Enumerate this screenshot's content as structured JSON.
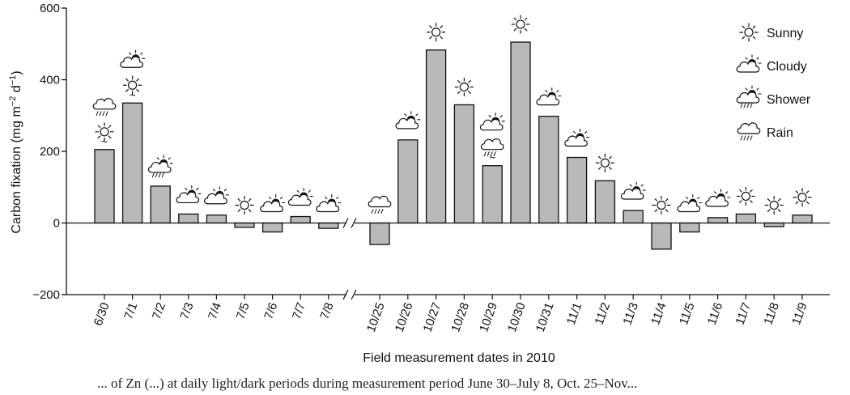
{
  "chart_data": {
    "type": "bar",
    "title": "",
    "xlabel": "Field measurement dates in 2010",
    "ylabel": "Carbon fixation (mg m",
    "ylabel_sup1": "−2",
    "ylabel_mid": " d",
    "ylabel_sup2": "−1",
    "ylabel_end": ")",
    "ylim": [
      -200,
      600
    ],
    "yticks": [
      {
        "value": -200,
        "label": "−200"
      },
      {
        "value": 0,
        "label": "0"
      },
      {
        "value": 200,
        "label": "200"
      },
      {
        "value": 400,
        "label": "400"
      },
      {
        "value": 600,
        "label": "600"
      }
    ],
    "grid": false,
    "bar_color": "#b9b9b9",
    "axis_break_after": "7/8",
    "categories": [
      "6/30",
      "7/1",
      "7/2",
      "7/3",
      "7/4",
      "7/5",
      "7/6",
      "7/7",
      "7/8",
      "10/25",
      "10/26",
      "10/27",
      "10/28",
      "10/29",
      "10/30",
      "10/31",
      "11/1",
      "11/2",
      "11/3",
      "11/4",
      "11/5",
      "11/6",
      "11/7",
      "11/8",
      "11/9"
    ],
    "values": [
      205,
      335,
      103,
      25,
      22,
      -12,
      -25,
      18,
      -15,
      -60,
      232,
      483,
      330,
      160,
      505,
      298,
      183,
      118,
      35,
      -73,
      -25,
      15,
      25,
      -10,
      22
    ],
    "weather": [
      [
        "sunny",
        "rain"
      ],
      [
        "sunny",
        "cloudy"
      ],
      [
        "shower"
      ],
      [
        "cloudy"
      ],
      [
        "cloudy"
      ],
      [
        "sunny"
      ],
      [
        "cloudy"
      ],
      [
        "cloudy"
      ],
      [
        "cloudy"
      ],
      [
        "rain"
      ],
      [
        "cloudy"
      ],
      [
        "sunny"
      ],
      [
        "sunny"
      ],
      [
        "rain",
        "cloudy"
      ],
      [
        "sunny"
      ],
      [
        "cloudy"
      ],
      [
        "cloudy"
      ],
      [
        "sunny"
      ],
      [
        "cloudy"
      ],
      [
        "sunny"
      ],
      [
        "cloudy"
      ],
      [
        "cloudy"
      ],
      [
        "sunny"
      ],
      [
        "sunny"
      ],
      [
        "sunny"
      ]
    ],
    "legend_position": "top-right",
    "legend": [
      {
        "key": "sunny",
        "label": "Sunny"
      },
      {
        "key": "cloudy",
        "label": "Cloudy"
      },
      {
        "key": "shower",
        "label": "Shower"
      },
      {
        "key": "rain",
        "label": "Rain"
      }
    ]
  },
  "caption": "... of Zn (...) at daily light/dark periods during measurement period June 30–July 8, Oct. 25–Nov..."
}
